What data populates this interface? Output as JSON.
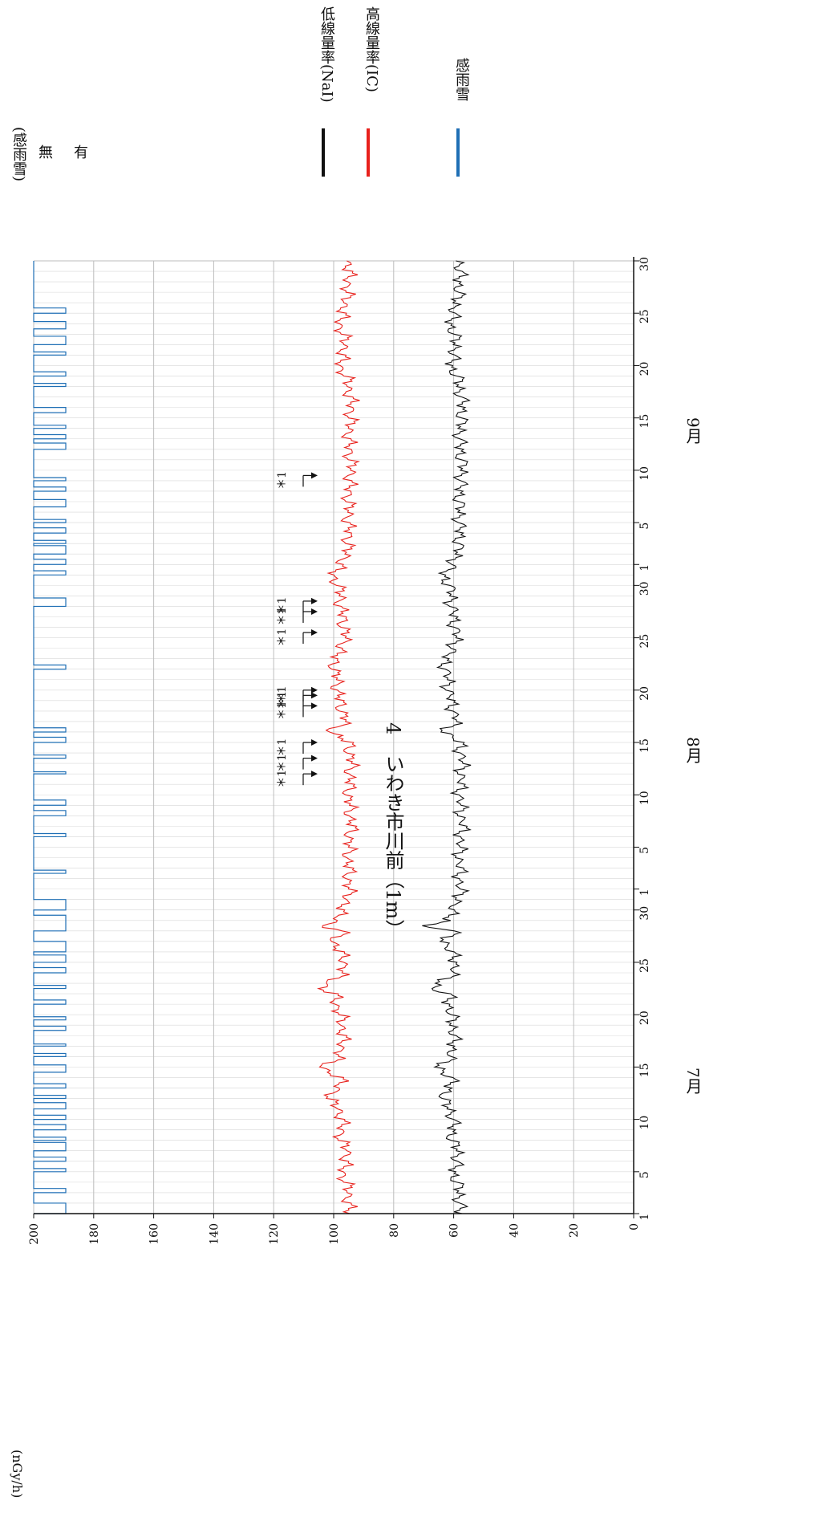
{
  "chart_data": {
    "type": "line",
    "title": "4　いわき市川前（1m）",
    "ylabel": "(nGy/h)",
    "ylim": [
      0,
      200
    ],
    "yticks": [
      0,
      20,
      40,
      60,
      80,
      100,
      120,
      140,
      160,
      180,
      200
    ],
    "x_tick_days": [
      {
        "label": "1",
        "day": 1
      },
      {
        "label": "5",
        "day": 5
      },
      {
        "label": "10",
        "day": 10
      },
      {
        "label": "15",
        "day": 15
      },
      {
        "label": "20",
        "day": 20
      },
      {
        "label": "25",
        "day": 25
      },
      {
        "label": "30",
        "day": 30
      },
      {
        "label": "1",
        "day": 32
      },
      {
        "label": "5",
        "day": 36
      },
      {
        "label": "10",
        "day": 41
      },
      {
        "label": "15",
        "day": 46
      },
      {
        "label": "20",
        "day": 51
      },
      {
        "label": "25",
        "day": 56
      },
      {
        "label": "30",
        "day": 61
      },
      {
        "label": "1",
        "day": 63
      },
      {
        "label": "5",
        "day": 67
      },
      {
        "label": "10",
        "day": 72
      },
      {
        "label": "15",
        "day": 77
      },
      {
        "label": "20",
        "day": 82
      },
      {
        "label": "25",
        "day": 87
      },
      {
        "label": "30",
        "day": 92
      }
    ],
    "months": [
      {
        "label": "7月",
        "day": 16
      },
      {
        "label": "8月",
        "day": 47
      },
      {
        "label": "9月",
        "day": 77
      }
    ],
    "series": [
      {
        "name": "低線量率(NaI)",
        "color": "#111111",
        "x": [
          1,
          3,
          5,
          7,
          8,
          9,
          11,
          12,
          13,
          14,
          15,
          16,
          17,
          19,
          20,
          22,
          22.5,
          24,
          25,
          26,
          27,
          28,
          28.5,
          29,
          30,
          31,
          34,
          36,
          38,
          41,
          44,
          46,
          47,
          48,
          50,
          52,
          54,
          55,
          56,
          58,
          60,
          61,
          62,
          63,
          65,
          67,
          70,
          72,
          75,
          78,
          80,
          81,
          82,
          84,
          86,
          87,
          88,
          90,
          92
        ],
        "y": [
          58,
          58,
          60,
          58,
          61,
          60,
          61,
          64,
          61,
          61,
          65,
          61,
          60,
          60,
          61,
          62,
          67,
          60,
          59,
          61,
          63,
          60,
          70,
          61,
          61,
          58,
          58,
          58,
          57,
          58,
          57,
          58,
          63,
          59,
          61,
          62,
          63,
          60,
          59,
          60,
          61,
          61,
          64,
          60,
          58,
          58,
          58,
          57,
          58,
          57,
          58,
          59,
          61,
          59,
          61,
          60,
          59,
          58,
          58
        ]
      },
      {
        "name": "高線量率(IC)",
        "color": "#e8211c",
        "x": [
          1,
          3,
          5,
          7,
          8,
          9,
          11,
          12,
          13,
          14,
          15,
          16,
          17,
          19,
          20,
          22,
          22.5,
          24,
          25,
          26,
          27,
          28,
          28.5,
          29,
          30,
          31,
          34,
          36,
          38,
          41,
          44,
          46,
          47,
          48,
          50,
          52,
          54,
          55,
          56,
          58,
          60,
          61,
          62,
          63,
          65,
          67,
          70,
          72,
          75,
          78,
          80,
          81,
          82,
          84,
          86,
          87,
          88,
          90,
          92
        ],
        "y": [
          95,
          95,
          97,
          95,
          98,
          97,
          98,
          102,
          98,
          98,
          104,
          98,
          97,
          97,
          98,
          100,
          104,
          97,
          96,
          98,
          100,
          97,
          104,
          98,
          98,
          95,
          95,
          95,
          94,
          95,
          94,
          95,
          101,
          96,
          98,
          99,
          100,
          97,
          96,
          97,
          98,
          98,
          101,
          97,
          95,
          95,
          95,
          94,
          95,
          94,
          95,
          96,
          98,
          96,
          98,
          97,
          96,
          95,
          95
        ]
      }
    ],
    "rain": {
      "name": "感雨雪",
      "color": "#1f6fb5",
      "label_title": "(感雨雪)",
      "state_off": "無",
      "state_on": "有",
      "events": [
        [
          1,
          2
        ],
        [
          3,
          3.4
        ],
        [
          5,
          5.3
        ],
        [
          6,
          6.4
        ],
        [
          7,
          7.8
        ],
        [
          8,
          8.3
        ],
        [
          9,
          9.5
        ],
        [
          10,
          10.4
        ],
        [
          11,
          11.6
        ],
        [
          12,
          12.3
        ],
        [
          13,
          13.4
        ],
        [
          14.5,
          15.2
        ],
        [
          16,
          16.3
        ],
        [
          17,
          17.2
        ],
        [
          18.5,
          18.9
        ],
        [
          19.5,
          19.8
        ],
        [
          21,
          21.4
        ],
        [
          22.5,
          22.8
        ],
        [
          24,
          24.5
        ],
        [
          25,
          25.7
        ],
        [
          26,
          27
        ],
        [
          28,
          29.5
        ],
        [
          30,
          31
        ],
        [
          33.5,
          33.8
        ],
        [
          37,
          37.3
        ],
        [
          39,
          39.5
        ],
        [
          40,
          40.5
        ],
        [
          43,
          43.2
        ],
        [
          44.5,
          44.8
        ],
        [
          46,
          46.5
        ],
        [
          47,
          47.4
        ],
        [
          53,
          53.4
        ],
        [
          59,
          59.8
        ],
        [
          62,
          62.4
        ],
        [
          63,
          63.5
        ],
        [
          64,
          64.8
        ],
        [
          65,
          65.3
        ],
        [
          66,
          66.5
        ],
        [
          67,
          67.3
        ],
        [
          68.5,
          69.2
        ],
        [
          70,
          70.4
        ],
        [
          71,
          71.3
        ],
        [
          74,
          74.6
        ],
        [
          75,
          75.4
        ],
        [
          76,
          76.3
        ],
        [
          77.5,
          78
        ],
        [
          80,
          80.3
        ],
        [
          81,
          81.4
        ],
        [
          83,
          83.3
        ],
        [
          84,
          84.8
        ],
        [
          85.5,
          86.2
        ],
        [
          87,
          87.5
        ]
      ]
    },
    "annotations": [
      {
        "text": "＊1",
        "day": 43
      },
      {
        "text": "＊1",
        "day": 44.5
      },
      {
        "text": "＊1",
        "day": 46
      },
      {
        "text": "＊1",
        "day": 49.5
      },
      {
        "text": "＊1",
        "day": 50.5
      },
      {
        "text": "＊1",
        "day": 51
      },
      {
        "text": "＊1",
        "day": 56.5
      },
      {
        "text": "＊1",
        "day": 58.5
      },
      {
        "text": "＊1",
        "day": 59.5
      },
      {
        "text": "＊1",
        "day": 71.5
      }
    ],
    "legend": [
      {
        "label": "低線量率(NaI)",
        "color": "#111111"
      },
      {
        "label": "高線量率(IC)",
        "color": "#e8211c"
      },
      {
        "label": "感雨雪",
        "color": "#1f6fb5"
      }
    ]
  }
}
